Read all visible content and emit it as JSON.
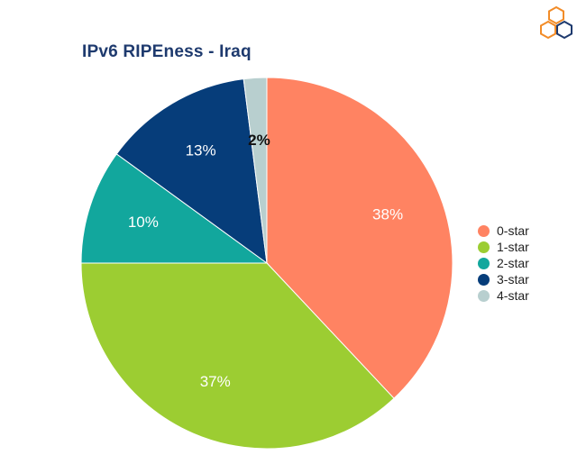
{
  "chart_data": {
    "type": "pie",
    "title": "IPv6 RIPEness - Iraq",
    "categories": [
      "0-star",
      "1-star",
      "2-star",
      "3-star",
      "4-star"
    ],
    "values": [
      38,
      37,
      10,
      13,
      2
    ],
    "data_labels": [
      "38%",
      "37%",
      "10%",
      "13%",
      "2%"
    ],
    "colors": [
      "#ff8362",
      "#9ccd32",
      "#12a79d",
      "#063d7a",
      "#b8cfcf"
    ],
    "label_colors": [
      "#ffffff",
      "#ffffff",
      "#ffffff",
      "#ffffff",
      "#111111"
    ],
    "legend_position": "right",
    "start_angle_deg": 0,
    "direction": "clockwise"
  },
  "logo": {
    "icon": "ripe-ncc-hexagon-logo",
    "colors": [
      "#f28c28",
      "#1e3a6e"
    ]
  }
}
